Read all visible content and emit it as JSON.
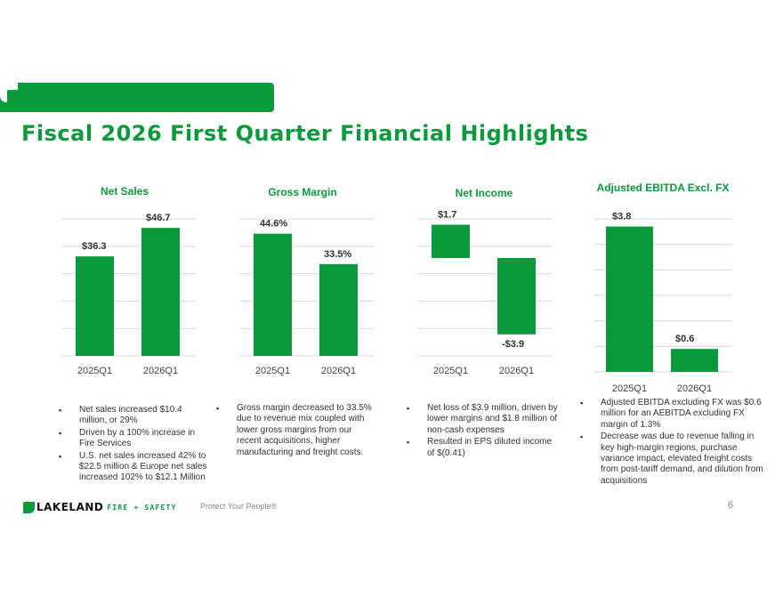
{
  "title": "Fiscal 2026 First Quarter Financial Highlights",
  "colors": {
    "accent": "#0a9a3c",
    "grid": "#d9d9d9"
  },
  "chart_data": [
    {
      "type": "bar",
      "title": "Net Sales",
      "categories": [
        "2025Q1",
        "2026Q1"
      ],
      "values": [
        36.3,
        46.7
      ],
      "labels": [
        "$36.3",
        "$46.7"
      ],
      "ylim": [
        0,
        50
      ]
    },
    {
      "type": "bar",
      "title": "Gross Margin",
      "categories": [
        "2025Q1",
        "2026Q1"
      ],
      "values": [
        44.6,
        33.5
      ],
      "labels": [
        "44.6%",
        "33.5%"
      ],
      "ylim": [
        0,
        50
      ]
    },
    {
      "type": "bar",
      "title": "Net Income",
      "categories": [
        "2025Q1",
        "2026Q1"
      ],
      "values": [
        1.7,
        -3.9
      ],
      "labels": [
        "$1.7",
        "-$3.9"
      ],
      "ylim": [
        -5,
        2
      ]
    },
    {
      "type": "bar",
      "title": "Adjusted EBITDA Excl. FX",
      "categories": [
        "2025Q1",
        "2026Q1"
      ],
      "values": [
        3.8,
        0.6
      ],
      "labels": [
        "$3.8",
        "$0.6"
      ],
      "ylim": [
        0,
        4
      ]
    }
  ],
  "bullets": {
    "net_sales": [
      "Net sales increased $10.4 million, or 29%",
      "Driven by a 100% increase in Fire Services",
      "U.S. net sales increased 42% to $22.5 million & Europe net sales increased 102% to $12.1 Million"
    ],
    "gross_margin": [
      "Gross margin decreased to 33.5% due to revenue mix coupled with lower gross margins from our recent acquisitions, higher manufacturing and freight costs."
    ],
    "net_income": [
      "Net loss of $3.9 million, driven by lower margins and $1.8 million of non-cash expenses",
      "Resulted in EPS diluted income of  $(0.41)"
    ],
    "ebitda": [
      "Adjusted EBITDA excluding FX was $0.6 million for an AEBITDA excluding FX margin of 1.3%",
      "Decrease was due to revenue falling in key high-margin regions, purchase variance impact, elevated freight costs from post-tariff demand, and dilution from acquisitions"
    ]
  },
  "footer": {
    "logo_text": "LAKELAND",
    "logo_sub": "FIRE + SAFETY",
    "tagline": "Protect Your People®",
    "page_number": "6"
  }
}
